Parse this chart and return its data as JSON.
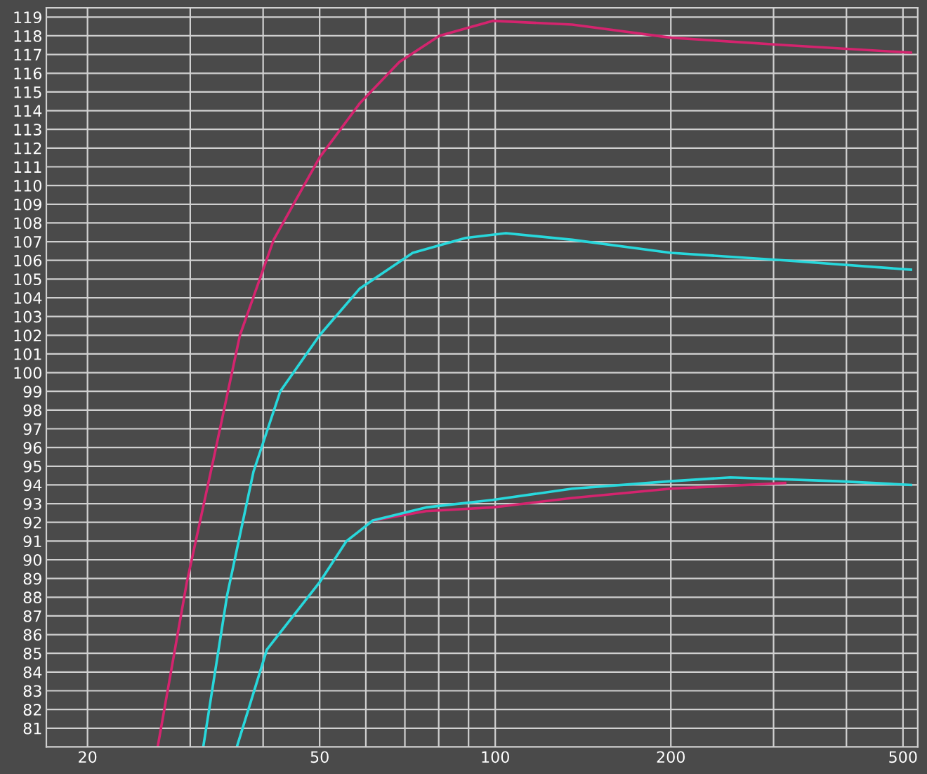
{
  "chart_data": {
    "type": "line",
    "log": "x",
    "grid": true,
    "marker": "none",
    "line_style": "solid",
    "xlim": [
      17,
      530
    ],
    "ylim": [
      80,
      119.5
    ],
    "xticks": [
      20,
      {
        "value": 30,
        "label": null
      },
      {
        "value": 40,
        "label": null
      },
      50,
      {
        "value": 60,
        "label": null
      },
      {
        "value": 70,
        "label": null
      },
      {
        "value": 80,
        "label": null
      },
      {
        "value": 90,
        "label": null
      },
      100,
      200,
      {
        "value": 300,
        "label": null
      },
      {
        "value": 400,
        "label": null
      },
      500
    ],
    "yticks": [
      81,
      82,
      83,
      84,
      85,
      86,
      87,
      88,
      89,
      90,
      91,
      92,
      93,
      94,
      95,
      96,
      97,
      98,
      99,
      100,
      101,
      102,
      103,
      104,
      105,
      106,
      107,
      108,
      109,
      110,
      111,
      112,
      113,
      114,
      115,
      116,
      117,
      118,
      119
    ],
    "series": [
      {
        "color": "#d4246e",
        "x": [
          26.4,
          29.6,
          32.9,
          36.5,
          41.7,
          50,
          58.6,
          68.5,
          80.2,
          99,
          135.5,
          200,
          314,
          516
        ],
        "values": [
          80.05,
          88.8,
          95.4,
          102,
          107.1,
          111.5,
          114.4,
          116.6,
          118.0,
          118.8,
          118.6,
          117.9,
          117.5,
          117.1
        ]
      },
      {
        "color": "#28d8dc",
        "x": [
          31.6,
          34.7,
          38.5,
          42.8,
          50,
          58.6,
          72.2,
          89,
          104.3,
          135.5,
          200,
          314,
          516
        ],
        "values": [
          80.05,
          88.1,
          94.7,
          99.0,
          102.0,
          104.5,
          106.4,
          107.2,
          107.45,
          107.1,
          106.4,
          106.0,
          105.5
        ]
      },
      {
        "color": "#d4246e",
        "x": [
          61.7,
          76.1,
          99,
          135.5,
          200,
          314
        ],
        "values": [
          92.1,
          92.6,
          92.8,
          93.3,
          93.8,
          94.1
        ]
      },
      {
        "color": "#28d8dc",
        "x": [
          36.1,
          40.6,
          50,
          55.6,
          61.7,
          76.1,
          99,
          135.5,
          200,
          253,
          387,
          516
        ],
        "values": [
          80.05,
          85.2,
          88.8,
          91.0,
          92.1,
          92.8,
          93.2,
          93.8,
          94.2,
          94.4,
          94.2,
          94.0
        ]
      }
    ]
  }
}
